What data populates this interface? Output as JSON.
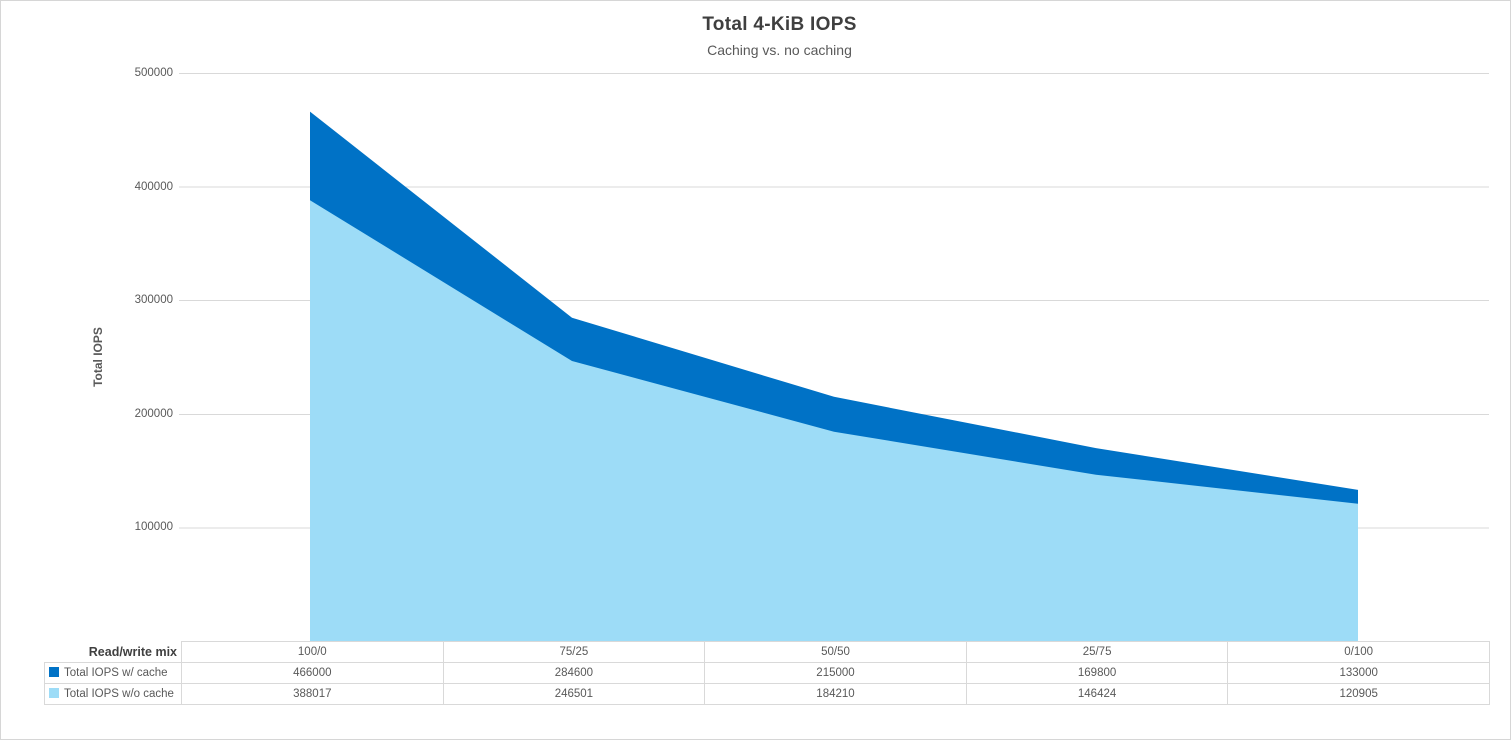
{
  "chart_data": {
    "type": "area",
    "title": "Total 4-KiB IOPS",
    "subtitle": "Caching vs. no caching",
    "ylabel": "Total IOPS",
    "xlabel": "Read/write mix",
    "categories": [
      "100/0",
      "75/25",
      "50/50",
      "25/75",
      "0/100"
    ],
    "series": [
      {
        "name": "Total IOPS w/ cache",
        "color": "#0072c6",
        "values": [
          466000,
          284600,
          215000,
          169800,
          133000
        ]
      },
      {
        "name": "Total IOPS w/o cache",
        "color": "#9ddcf7",
        "values": [
          388017,
          246501,
          184210,
          146424,
          120905
        ]
      }
    ],
    "ylim": [
      0,
      500000
    ],
    "yticks": [
      100000,
      200000,
      300000,
      400000,
      500000
    ],
    "grid": "horizontal-lines",
    "legend_position": "data-table-left",
    "data_table_shown": true
  },
  "colors": {
    "series_with_cache": "#0072c6",
    "series_without_cache": "#9ddcf7",
    "gridline": "#d9d9d9",
    "table_border": "#d9d9d9",
    "title_text": "#3f3f3f",
    "axis_text": "#595959",
    "background": "#ffffff",
    "frame_border": "#d6d6d6"
  }
}
